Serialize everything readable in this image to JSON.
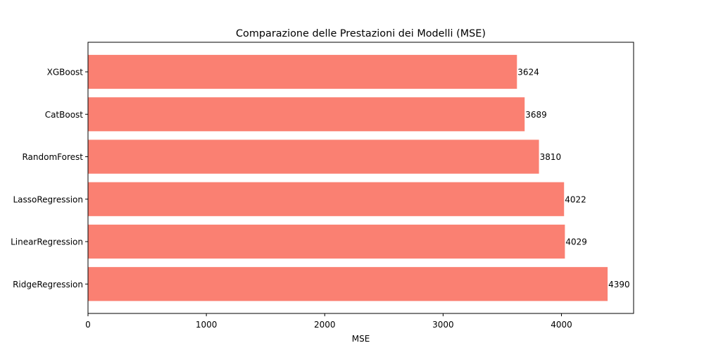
{
  "chart_data": {
    "type": "bar",
    "orientation": "horizontal",
    "title": "Comparazione delle Prestazioni dei Modelli (MSE)",
    "xlabel": "MSE",
    "ylabel": "",
    "categories": [
      "XGBoost",
      "CatBoost",
      "RandomForest",
      "LassoRegression",
      "LinearRegression",
      "RidgeRegression"
    ],
    "values": [
      3624,
      3689,
      3810,
      4022,
      4029,
      4390
    ],
    "data_labels": [
      "3624",
      "3689",
      "3810",
      "4022",
      "4029",
      "4390"
    ],
    "xlim": [
      0,
      4609.5
    ],
    "x_ticks": [
      0,
      1000,
      2000,
      3000,
      4000
    ],
    "x_tick_labels": [
      "0",
      "1000",
      "2000",
      "3000",
      "4000"
    ],
    "bar_color": "#fa8072",
    "grid": false,
    "legend": "none"
  }
}
